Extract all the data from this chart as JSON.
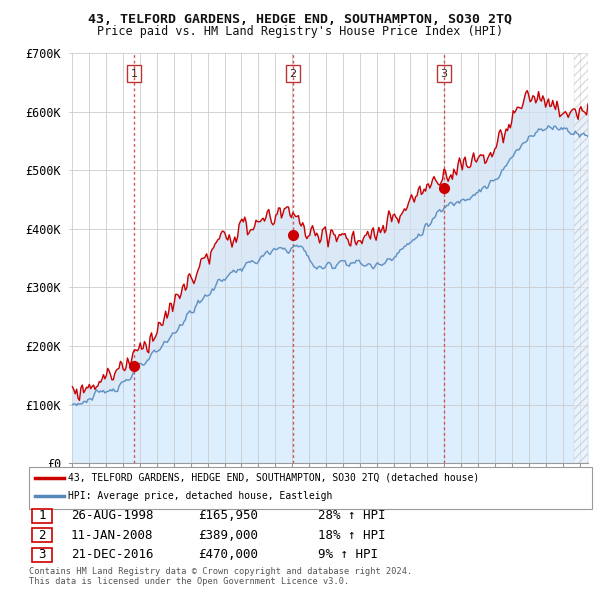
{
  "title_line1": "43, TELFORD GARDENS, HEDGE END, SOUTHAMPTON, SO30 2TQ",
  "title_line2": "Price paid vs. HM Land Registry's House Price Index (HPI)",
  "legend_label1": "43, TELFORD GARDENS, HEDGE END, SOUTHAMPTON, SO30 2TQ (detached house)",
  "legend_label2": "HPI: Average price, detached house, Eastleigh",
  "color_line1": "#cc0000",
  "color_line2": "#5588bb",
  "color_fill_blue": "#ddeeff",
  "vline_color": "#cc4444",
  "ymin": 0,
  "ymax": 700000,
  "xmin": 1994.8,
  "xmax": 2025.5,
  "yticks": [
    0,
    100000,
    200000,
    300000,
    400000,
    500000,
    600000,
    700000
  ],
  "ytick_labels": [
    "£0",
    "£100K",
    "£200K",
    "£300K",
    "£400K",
    "£500K",
    "£600K",
    "£700K"
  ],
  "purchases": [
    {
      "year": 1998.65,
      "price": 165950,
      "label": "1"
    },
    {
      "year": 2008.03,
      "price": 389000,
      "label": "2"
    },
    {
      "year": 2016.97,
      "price": 470000,
      "label": "3"
    }
  ],
  "purchase_details": [
    {
      "num": "1",
      "date": "26-AUG-1998",
      "price": "£165,950",
      "pct": "28%",
      "dir": "↑",
      "ref": "HPI"
    },
    {
      "num": "2",
      "date": "11-JAN-2008",
      "price": "£389,000",
      "pct": "18%",
      "dir": "↑",
      "ref": "HPI"
    },
    {
      "num": "3",
      "date": "21-DEC-2016",
      "price": "£470,000",
      "pct": "9%",
      "dir": "↑",
      "ref": "HPI"
    }
  ],
  "footer_line1": "Contains HM Land Registry data © Crown copyright and database right 2024.",
  "footer_line2": "This data is licensed under the Open Government Licence v3.0.",
  "bg_color": "#ffffff",
  "grid_color": "#cccccc"
}
